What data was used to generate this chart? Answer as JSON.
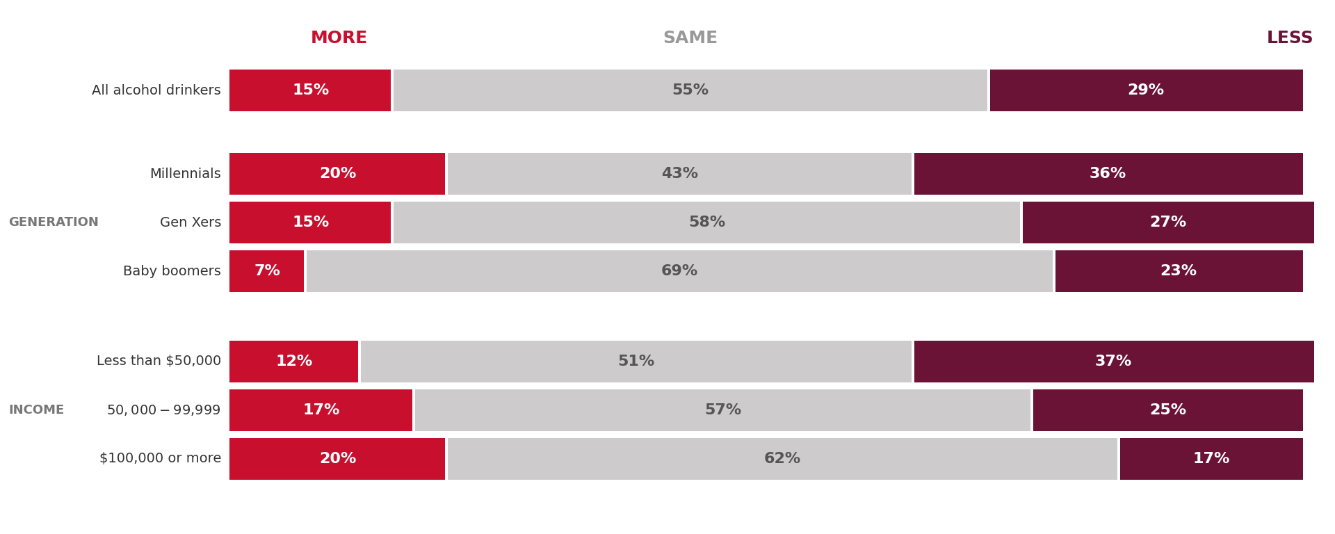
{
  "rows": [
    {
      "label": "All alcohol drinkers",
      "more": 15,
      "same": 55,
      "less": 29,
      "group": "all"
    },
    {
      "label": "Millennials",
      "more": 20,
      "same": 43,
      "less": 36,
      "group": "generation"
    },
    {
      "label": "Gen Xers",
      "more": 15,
      "same": 58,
      "less": 27,
      "group": "generation"
    },
    {
      "label": "Baby boomers",
      "more": 7,
      "same": 69,
      "less": 23,
      "group": "generation"
    },
    {
      "label": "Less than $50,000",
      "more": 12,
      "same": 51,
      "less": 37,
      "group": "income"
    },
    {
      "label": "$50,000-$99,999",
      "more": 17,
      "same": 57,
      "less": 25,
      "group": "income"
    },
    {
      "label": "$100,000 or more",
      "more": 20,
      "same": 62,
      "less": 17,
      "group": "income"
    }
  ],
  "color_more": "#C8102E",
  "color_same": "#CDCBCC",
  "color_less": "#6B1237",
  "color_more_header": "#C8102E",
  "color_same_header": "#999999",
  "color_less_header": "#6B1237",
  "background": "#FFFFFF",
  "group_label_generation": "GENERATION",
  "group_label_income": "INCOME",
  "header_more": "MORE",
  "header_same": "SAME",
  "header_less": "LESS"
}
